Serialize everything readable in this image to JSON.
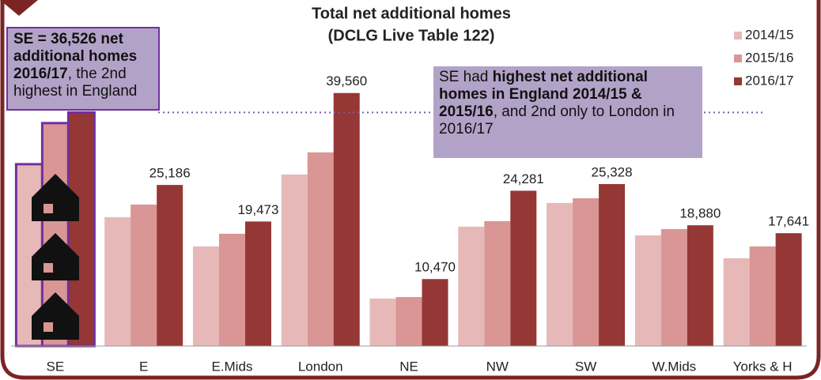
{
  "chart_data": {
    "type": "bar",
    "title": "Total net additional homes",
    "subtitle": "(DCLG Live Table 122)",
    "categories": [
      "SE",
      "E",
      "E.Mids",
      "London",
      "NE",
      "NW",
      "SW",
      "W.Mids",
      "Yorks & H"
    ],
    "series": [
      {
        "name": "2014/15",
        "color": "#e6b9b8",
        "values": [
          28430,
          20150,
          15570,
          26820,
          7420,
          18660,
          22370,
          17300,
          13720
        ]
      },
      {
        "name": "2015/16",
        "color": "#d99694",
        "values": [
          34860,
          22120,
          17550,
          30280,
          7660,
          19530,
          23110,
          18290,
          15570
        ]
      },
      {
        "name": "2016/17",
        "color": "#953735",
        "values": [
          36526,
          25186,
          19473,
          39560,
          10470,
          24281,
          25328,
          18880,
          17641
        ],
        "value_labels": [
          null,
          "25,186",
          "19,473",
          "39,560",
          "10,470",
          "24,281",
          "25,328",
          "18,880",
          "17,641"
        ]
      }
    ],
    "ylim": [
      0,
      42000
    ],
    "annotations": [
      {
        "parts": [
          {
            "text": "SE = 36,526 net additional homes 2016/17",
            "bold": true
          },
          {
            "text": ", the 2nd highest in England",
            "bold": false
          }
        ]
      },
      {
        "parts": [
          {
            "text": "SE had ",
            "bold": false
          },
          {
            "text": "highest net additional homes in England 2014/15 & 2015/16",
            "bold": true
          },
          {
            "text": ", and 2nd only to London in 2016/17",
            "bold": false
          }
        ]
      }
    ]
  }
}
